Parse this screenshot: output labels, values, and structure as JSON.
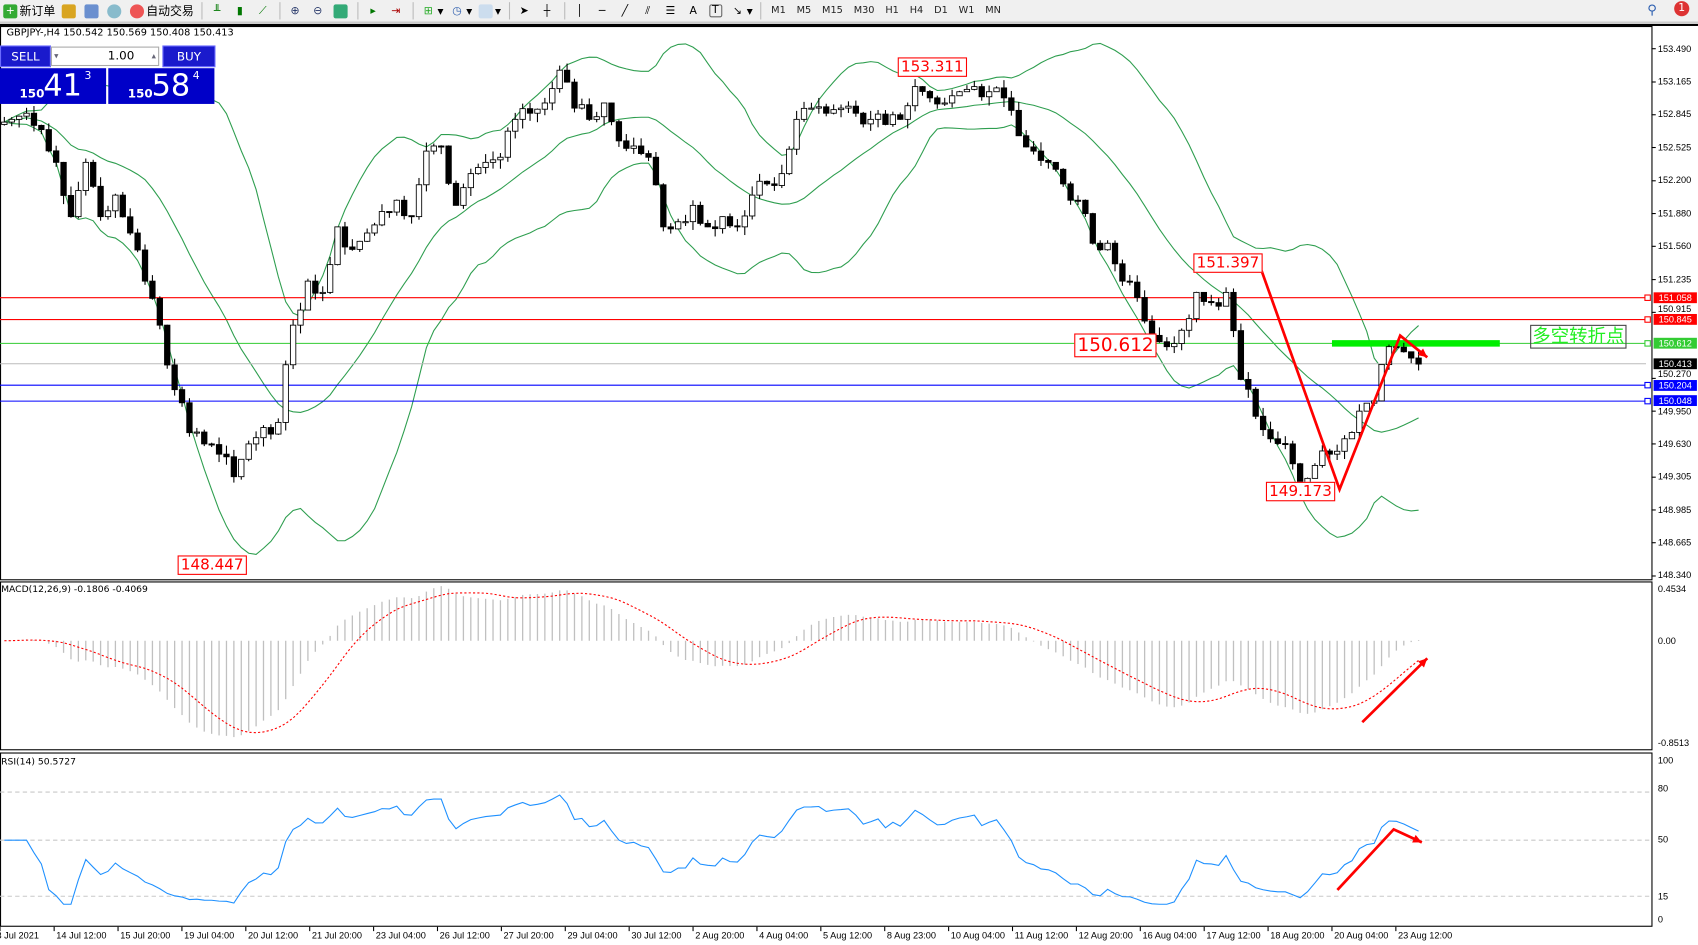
{
  "toolbar": {
    "new_order": "新订单",
    "auto_trading": "自动交易",
    "text_tool": "A",
    "timeframes": [
      "M1",
      "M5",
      "M15",
      "M30",
      "H1",
      "H4",
      "D1",
      "W1",
      "MN"
    ],
    "notifications_count": "1"
  },
  "symbol_info": "GBPJPY-,H4  150.542 150.569 150.408 150.413",
  "trade_panel": {
    "sell_label": "SELL",
    "buy_label": "BUY",
    "lot": "1.00",
    "sell_big": "150",
    "sell_main": "41",
    "sell_pip": "3",
    "buy_big": "150",
    "buy_main": "58",
    "buy_pip": "4"
  },
  "price_axis": [
    "153.490",
    "153.165",
    "152.845",
    "152.525",
    "152.200",
    "151.880",
    "151.560",
    "151.235",
    "150.915",
    "150.270",
    "149.950",
    "149.630",
    "149.305",
    "148.985",
    "148.665",
    "148.340"
  ],
  "levels": [
    {
      "price": 151.058,
      "label": "151.058",
      "color": "#ff0000"
    },
    {
      "price": 150.845,
      "label": "150.845",
      "color": "#ff0000"
    },
    {
      "price": 150.612,
      "label": "150.612",
      "color": "#33cc33"
    },
    {
      "price": 150.413,
      "label": "150.413",
      "color": "#000000"
    },
    {
      "price": 150.204,
      "label": "150.204",
      "color": "#0000ff"
    },
    {
      "price": 150.048,
      "label": "150.048",
      "color": "#0000ff"
    }
  ],
  "annotations": {
    "high1": "153.311",
    "high2": "151.397",
    "pivot": "150.612",
    "low2": "149.173",
    "low1": "148.447",
    "pivot_text": "多空转折点"
  },
  "macd": {
    "label": "MACD(12,26,9) -0.1806 -0.4069",
    "axis": [
      "0.4534",
      "0.00",
      "-0.8513"
    ],
    "max": 0.4534,
    "min": -0.8513
  },
  "rsi": {
    "label": "RSI(14) 50.5727",
    "axis": [
      "100",
      "80",
      "50",
      "15",
      "0"
    ]
  },
  "time_axis": [
    "13 Jul 2021",
    "14 Jul 12:00",
    "15 Jul 20:00",
    "19 Jul 04:00",
    "20 Jul 12:00",
    "21 Jul 20:00",
    "23 Jul 04:00",
    "26 Jul 12:00",
    "27 Jul 20:00",
    "29 Jul 04:00",
    "30 Jul 12:00",
    "2 Aug 20:00",
    "4 Aug 04:00",
    "5 Aug 12:00",
    "8 Aug 23:00",
    "10 Aug 04:00",
    "11 Aug 12:00",
    "12 Aug 20:00",
    "16 Aug 04:00",
    "17 Aug 12:00",
    "18 Aug 20:00",
    "20 Aug 04:00",
    "23 Aug 12:00"
  ],
  "colors": {
    "bands": "#2e9e4f",
    "macd_hist": "#c0c0c0",
    "macd_signal": "#ff0000",
    "rsi": "#1e90ff",
    "arrows": "#ff0000",
    "pivot_bar": "#00ee00"
  },
  "chart_data": {
    "type": "candlestick",
    "ylim": [
      148.34,
      153.49
    ],
    "closes": [
      152.75,
      152.8,
      152.86,
      152.7,
      152.38,
      151.85,
      152.38,
      151.85,
      152.06,
      151.69,
      151.22,
      150.79,
      150.16,
      149.74,
      149.63,
      149.53,
      149.31,
      149.63,
      149.79,
      149.84,
      150.79,
      151.22,
      151.11,
      151.75,
      151.53,
      151.69,
      151.9,
      152.01,
      151.85,
      152.49,
      152.54,
      151.96,
      152.27,
      152.38,
      152.43,
      152.8,
      152.86,
      152.96,
      153.28,
      152.91,
      152.8,
      152.96,
      152.59,
      152.54,
      152.43,
      151.75,
      151.8,
      151.96,
      151.75,
      151.85,
      151.75,
      152.06,
      152.17,
      152.27,
      152.8,
      152.91,
      152.86,
      152.91,
      152.86,
      152.8,
      152.75,
      152.8,
      153.12,
      153.01,
      152.96,
      153.07,
      153.12,
      153.07,
      153.01,
      152.64,
      152.49,
      152.38,
      152.17,
      152.01,
      151.59,
      151.59,
      151.22,
      151.06,
      150.69,
      150.58,
      150.74,
      151.11,
      151.01,
      151.11,
      150.26,
      149.9,
      149.68,
      149.63,
      149.21,
      149.42,
      149.53,
      149.68,
      149.95,
      150.05,
      150.58,
      150.53,
      150.41
    ]
  }
}
